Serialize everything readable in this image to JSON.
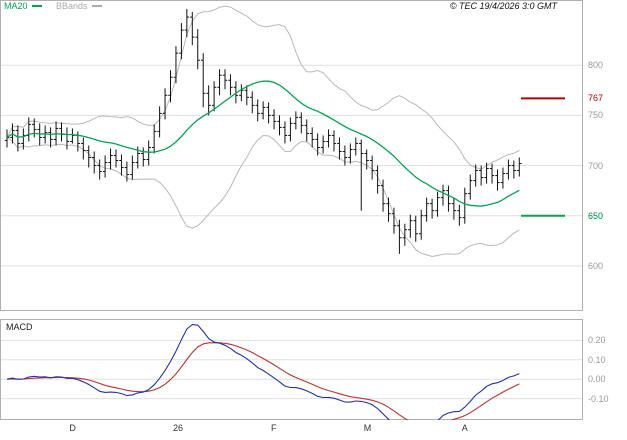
{
  "header": {
    "legend": [
      {
        "label": "MA20",
        "color": "#00a651"
      },
      {
        "label": "BBands",
        "color": "#aaaaaa"
      }
    ],
    "copyright": "© TEC 19/4/2026 3:0 GMT"
  },
  "macd_label": "MACD",
  "chart_data": {
    "type": "ohlc-with-macd",
    "x_axis": {
      "ticks": [
        {
          "label": "D",
          "bar": 12
        },
        {
          "label": "26",
          "bar": 31
        },
        {
          "label": "F",
          "bar": 49
        },
        {
          "label": "M",
          "bar": 66
        },
        {
          "label": "A",
          "bar": 84
        }
      ]
    },
    "price_panel": {
      "ylim": [
        555,
        865
      ],
      "yticks": [
        {
          "value": 800,
          "label": "800"
        },
        {
          "value": 750,
          "label": "750"
        },
        {
          "value": 700,
          "label": "700"
        },
        {
          "value": 650,
          "label": "650"
        },
        {
          "value": 600,
          "label": "600"
        }
      ],
      "levels": [
        {
          "value": 767,
          "label": "767",
          "color": "#bb0000"
        },
        {
          "value": 650,
          "label": "650",
          "color": "#00a651"
        }
      ],
      "overlays": {
        "ma": {
          "period": 20,
          "color": "#00a651"
        },
        "bbands": {
          "period": 20,
          "stddev": 2,
          "color": "#b8b8b8"
        }
      },
      "bar_color": "#111111",
      "ohlc": [
        [
          725,
          736,
          718,
          728
        ],
        [
          728,
          742,
          722,
          735
        ],
        [
          735,
          740,
          714,
          722
        ],
        [
          722,
          737,
          716,
          730
        ],
        [
          730,
          748,
          724,
          741
        ],
        [
          741,
          747,
          728,
          736
        ],
        [
          736,
          742,
          720,
          728
        ],
        [
          728,
          740,
          722,
          733
        ],
        [
          733,
          738,
          718,
          726
        ],
        [
          726,
          744,
          720,
          737
        ],
        [
          737,
          743,
          724,
          731
        ],
        [
          731,
          738,
          716,
          724
        ],
        [
          724,
          737,
          722,
          730
        ],
        [
          730,
          734,
          714,
          722
        ],
        [
          722,
          728,
          706,
          715
        ],
        [
          715,
          720,
          698,
          708
        ],
        [
          708,
          714,
          692,
          700
        ],
        [
          700,
          706,
          686,
          694
        ],
        [
          694,
          710,
          688,
          703
        ],
        [
          703,
          717,
          696,
          710
        ],
        [
          710,
          716,
          698,
          705
        ],
        [
          705,
          711,
          690,
          698
        ],
        [
          698,
          704,
          684,
          691
        ],
        [
          691,
          710,
          686,
          703
        ],
        [
          703,
          719,
          697,
          712
        ],
        [
          712,
          718,
          699,
          706
        ],
        [
          706,
          725,
          700,
          718
        ],
        [
          718,
          741,
          712,
          734
        ],
        [
          734,
          759,
          728,
          752
        ],
        [
          752,
          777,
          746,
          770
        ],
        [
          770,
          795,
          763,
          788
        ],
        [
          788,
          819,
          782,
          812
        ],
        [
          812,
          842,
          806,
          835
        ],
        [
          835,
          856,
          828,
          848
        ],
        [
          848,
          853,
          820,
          828
        ],
        [
          828,
          836,
          796,
          805
        ],
        [
          805,
          812,
          758,
          772
        ],
        [
          772,
          780,
          750,
          760
        ],
        [
          760,
          784,
          754,
          778
        ],
        [
          778,
          796,
          770,
          790
        ],
        [
          790,
          796,
          776,
          785
        ],
        [
          785,
          791,
          770,
          778
        ],
        [
          778,
          784,
          762,
          770
        ],
        [
          770,
          781,
          764,
          775
        ],
        [
          775,
          780,
          760,
          768
        ],
        [
          768,
          774,
          752,
          760
        ],
        [
          760,
          766,
          744,
          752
        ],
        [
          752,
          764,
          746,
          758
        ],
        [
          758,
          763,
          742,
          750
        ],
        [
          750,
          756,
          736,
          744
        ],
        [
          744,
          750,
          730,
          738
        ],
        [
          738,
          744,
          722,
          730
        ],
        [
          730,
          748,
          724,
          742
        ],
        [
          742,
          754,
          736,
          748
        ],
        [
          748,
          753,
          732,
          740
        ],
        [
          740,
          746,
          724,
          732
        ],
        [
          732,
          738,
          718,
          726
        ],
        [
          726,
          732,
          710,
          718
        ],
        [
          718,
          730,
          712,
          724
        ],
        [
          724,
          736,
          718,
          730
        ],
        [
          730,
          735,
          714,
          722
        ],
        [
          722,
          728,
          706,
          714
        ],
        [
          714,
          720,
          700,
          708
        ],
        [
          708,
          722,
          702,
          716
        ],
        [
          716,
          728,
          710,
          722
        ],
        [
          722,
          726,
          655,
          712
        ],
        [
          712,
          716,
          696,
          705
        ],
        [
          705,
          710,
          686,
          695
        ],
        [
          695,
          700,
          672,
          680
        ],
        [
          680,
          686,
          654,
          662
        ],
        [
          662,
          668,
          644,
          652
        ],
        [
          652,
          658,
          632,
          640
        ],
        [
          640,
          646,
          612,
          628
        ],
        [
          628,
          642,
          620,
          636
        ],
        [
          636,
          651,
          628,
          645
        ],
        [
          645,
          650,
          624,
          632
        ],
        [
          632,
          656,
          626,
          650
        ],
        [
          650,
          668,
          644,
          662
        ],
        [
          662,
          667,
          647,
          655
        ],
        [
          655,
          674,
          649,
          668
        ],
        [
          668,
          681,
          660,
          675
        ],
        [
          675,
          680,
          654,
          662
        ],
        [
          662,
          668,
          646,
          655
        ],
        [
          655,
          661,
          640,
          648
        ],
        [
          648,
          678,
          642,
          672
        ],
        [
          672,
          691,
          666,
          685
        ],
        [
          685,
          701,
          679,
          695
        ],
        [
          695,
          700,
          680,
          688
        ],
        [
          688,
          703,
          682,
          697
        ],
        [
          697,
          702,
          682,
          690
        ],
        [
          690,
          696,
          675,
          683
        ],
        [
          683,
          698,
          677,
          692
        ],
        [
          692,
          706,
          686,
          700
        ],
        [
          700,
          705,
          687,
          695
        ],
        [
          695,
          708,
          689,
          702
        ]
      ]
    },
    "macd_panel": {
      "ylim": [
        -0.21,
        0.31
      ],
      "yticks": [
        {
          "value": 0.2,
          "label": "0.20"
        },
        {
          "value": 0.1,
          "label": "0.10"
        },
        {
          "value": 0.0,
          "label": "0.00"
        },
        {
          "value": -0.1,
          "label": "-0.10"
        }
      ],
      "price_divisor": 100,
      "macd_color": "#2233aa",
      "signal_color": "#c03030",
      "periods": {
        "fast": 12,
        "slow": 26,
        "signal": 9
      }
    }
  }
}
